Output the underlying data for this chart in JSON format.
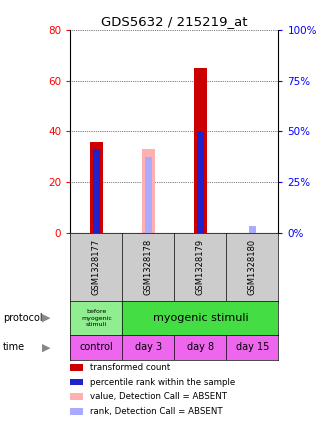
{
  "title": "GDS5632 / 215219_at",
  "samples": [
    "GSM1328177",
    "GSM1328178",
    "GSM1328179",
    "GSM1328180"
  ],
  "red_bars": [
    36,
    0,
    65,
    0
  ],
  "blue_bars": [
    33,
    0,
    40,
    0
  ],
  "pink_bars": [
    0,
    33,
    0,
    0
  ],
  "lightblue_bars": [
    0,
    30,
    0,
    3
  ],
  "ylim_left": [
    0,
    80
  ],
  "ylim_right": [
    0,
    100
  ],
  "yticks_left": [
    0,
    20,
    40,
    60,
    80
  ],
  "yticks_right": [
    0,
    25,
    50,
    75,
    100
  ],
  "ytick_labels_left": [
    "0",
    "20",
    "40",
    "60",
    "80"
  ],
  "ytick_labels_right": [
    "0%",
    "25%",
    "50%",
    "75%",
    "100%"
  ],
  "time_labels": [
    "control",
    "day 3",
    "day 8",
    "day 15"
  ],
  "protocol_color_light": "#90ee90",
  "protocol_color_bright": "#44dd44",
  "time_color": "#ee66ee",
  "sample_bg_color": "#cccccc",
  "red_color": "#cc0000",
  "blue_color": "#2222cc",
  "pink_color": "#ffb0b0",
  "lightblue_color": "#aaaaff",
  "legend_items": [
    [
      "transformed count",
      "#cc0000"
    ],
    [
      "percentile rank within the sample",
      "#2222cc"
    ],
    [
      "value, Detection Call = ABSENT",
      "#ffb0b0"
    ],
    [
      "rank, Detection Call = ABSENT",
      "#aaaaff"
    ]
  ],
  "bg_color": "#ffffff"
}
